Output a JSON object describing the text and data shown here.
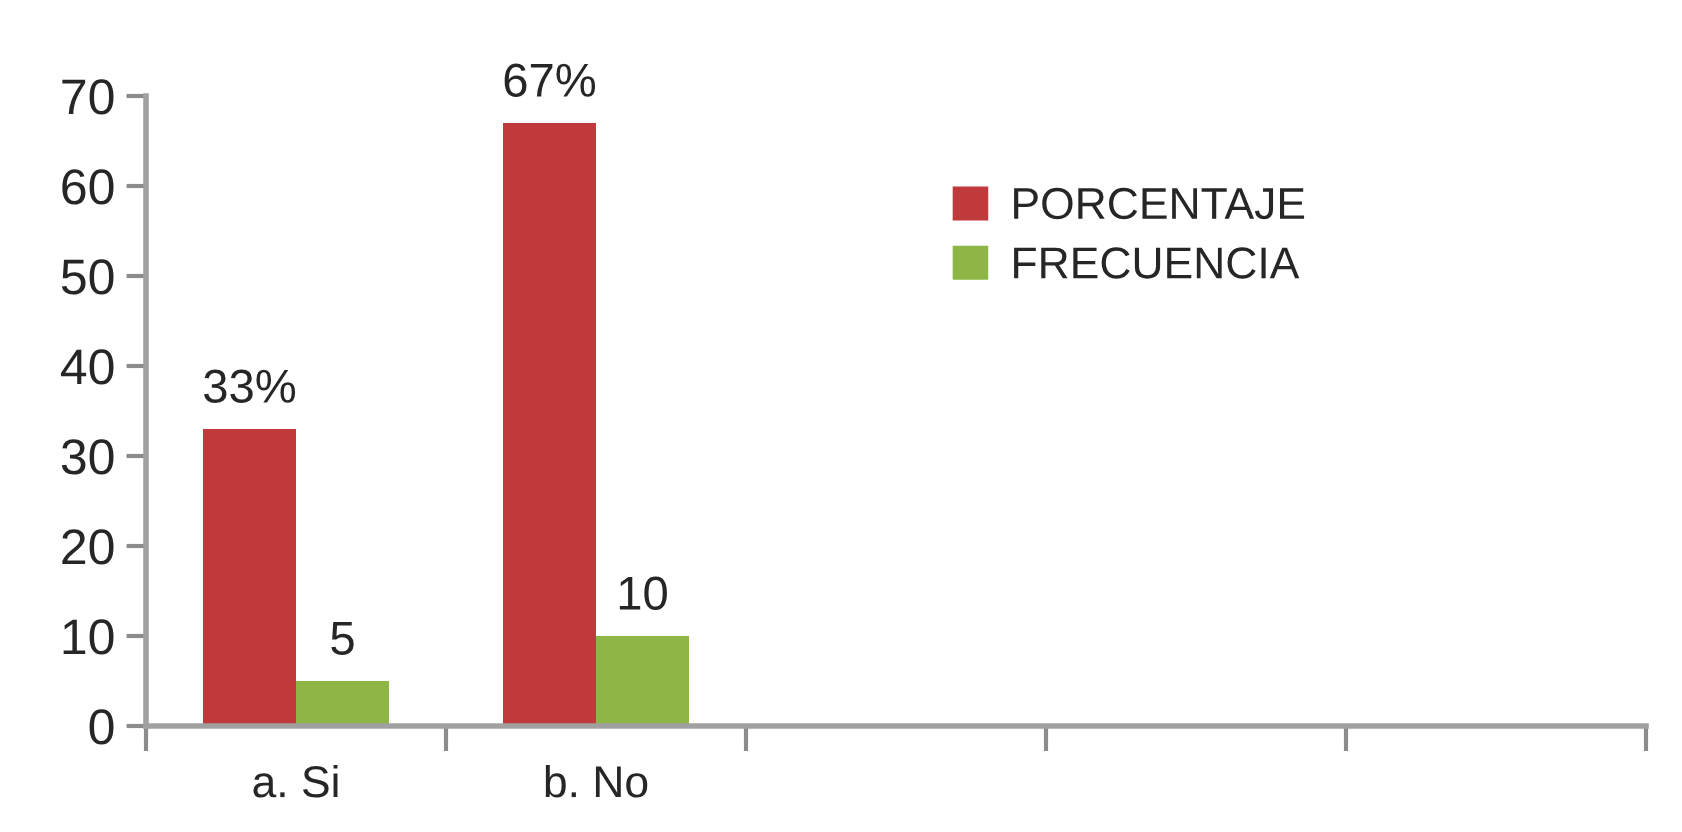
{
  "chart_data": {
    "type": "bar",
    "categories": [
      "a. Si",
      "b. No",
      null,
      null,
      null
    ],
    "series": [
      {
        "name": "PORCENTAJE",
        "color": "#c0393b",
        "values": [
          33,
          67,
          null,
          null,
          null
        ],
        "value_labels": [
          "33%",
          "67%",
          null,
          null,
          null
        ]
      },
      {
        "name": "FRECUENCIA",
        "color": "#8db646",
        "values": [
          5,
          10,
          null,
          null,
          null
        ],
        "value_labels": [
          "5",
          "10",
          null,
          null,
          null
        ]
      }
    ],
    "ylim": [
      0,
      70
    ],
    "yticks": [
      0,
      10,
      20,
      30,
      40,
      50,
      60,
      70
    ],
    "legend": "top right"
  }
}
